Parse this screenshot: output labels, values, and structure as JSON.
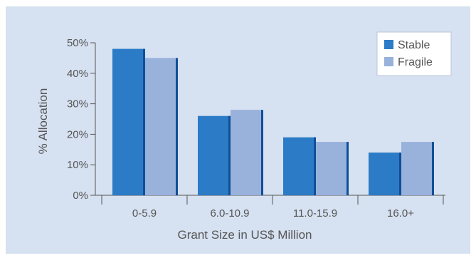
{
  "chart_data": {
    "type": "bar",
    "categories": [
      "0-5.9",
      "6.0-10.9",
      "11.0-15.9",
      "16.0+"
    ],
    "series": [
      {
        "name": "Stable",
        "values": [
          48,
          26,
          19,
          14
        ],
        "color": "#2b7bc6",
        "edge": "#0f4f99"
      },
      {
        "name": "Fragile",
        "values": [
          45,
          28,
          17.5,
          17.5
        ],
        "color": "#98b2dc",
        "edge": "#0f4f99"
      }
    ],
    "title": "",
    "xlabel": "Grant Size in US$ Million",
    "ylabel": "% Allocation",
    "ylim": [
      0,
      50
    ],
    "yticks": [
      0,
      10,
      20,
      30,
      40,
      50
    ],
    "ytick_labels": [
      "0%",
      "10%",
      "20%",
      "30%",
      "40%",
      "50%"
    ],
    "grid": false,
    "legend_position": "top-right",
    "background": "#d6e1f1"
  }
}
